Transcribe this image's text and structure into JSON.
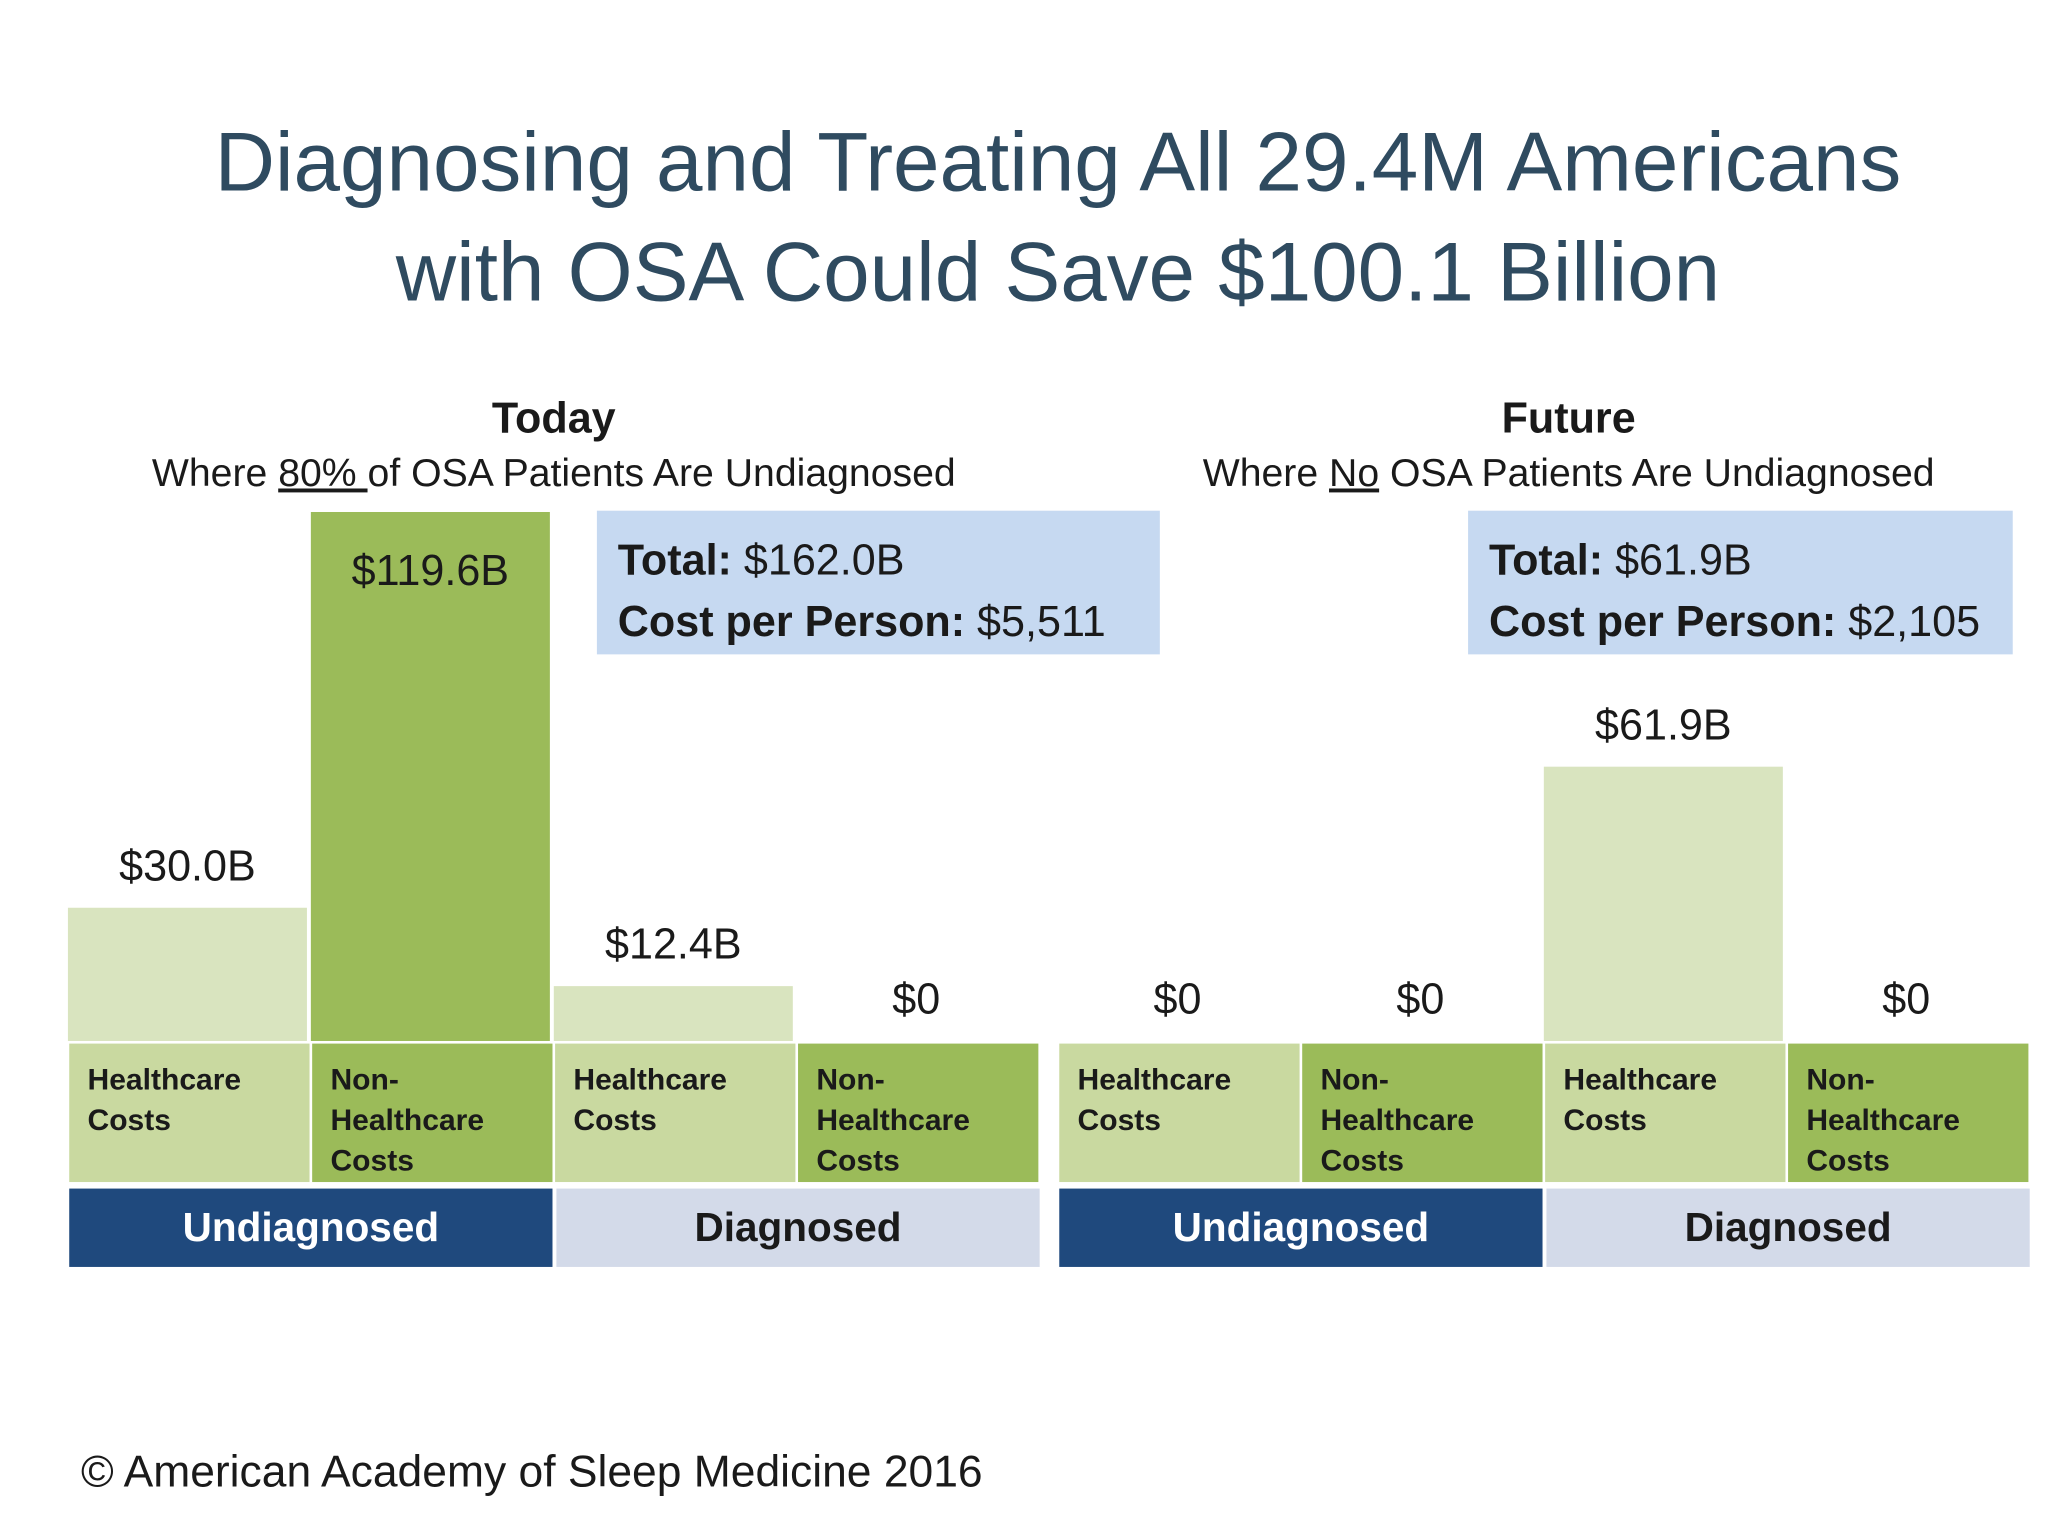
{
  "title": [
    "Diagnosing and Treating All 29.4M Americans",
    "with OSA Could Save $100.1 Billion"
  ],
  "footer": "© American Academy of Sleep Medicine 2016",
  "chart_data": [
    {
      "type": "bar",
      "title": "Today",
      "subtitle": [
        "Where ",
        "80% ",
        "of OSA Patients Are Undiagnosed"
      ],
      "annotations": [
        {
          "label": "Total:",
          "value": "$162.0B"
        },
        {
          "label": "Cost per Person:",
          "value": "$5,511"
        }
      ],
      "categories": [
        "Healthcare Costs",
        "Non-Healthcare Costs",
        "Healthcare Costs",
        "Non-Healthcare Costs"
      ],
      "values": [
        30.0,
        119.6,
        12.4,
        0
      ],
      "value_labels": [
        "$30.0B",
        "$119.6B",
        "$12.4B",
        "$0"
      ],
      "bar_colors": [
        "#d9e4bf",
        "#9bbb59",
        "#d9e4bf",
        "#9bbb59"
      ],
      "category_colors": [
        "#c9d9a0",
        "#9bbb59",
        "#c9d9a0",
        "#9bbb59"
      ],
      "groups": [
        {
          "name": "Undiagnosed",
          "color": "#1f497d",
          "text_color": "#ffffff"
        },
        {
          "name": "Diagnosed",
          "color": "#d3dae9",
          "text_color": "#1a1a1a"
        }
      ]
    },
    {
      "type": "bar",
      "title": "Future",
      "subtitle": [
        "Where ",
        "No",
        " OSA Patients Are Undiagnosed"
      ],
      "annotations": [
        {
          "label": "Total:",
          "value": "$61.9B"
        },
        {
          "label": "Cost per Person:",
          "value": "$2,105"
        }
      ],
      "categories": [
        "Healthcare Costs",
        "Non-Healthcare Costs",
        "Healthcare Costs",
        "Non-Healthcare Costs"
      ],
      "values": [
        0,
        0,
        61.9,
        0
      ],
      "value_labels": [
        "$0",
        "$0",
        "$61.9B",
        "$0"
      ],
      "bar_colors": [
        "#d9e4bf",
        "#9bbb59",
        "#d9e4bf",
        "#9bbb59"
      ],
      "category_colors": [
        "#c9d9a0",
        "#9bbb59",
        "#c9d9a0",
        "#9bbb59"
      ],
      "groups": [
        {
          "name": "Undiagnosed",
          "color": "#1f497d",
          "text_color": "#ffffff"
        },
        {
          "name": "Diagnosed",
          "color": "#d3dae9",
          "text_color": "#1a1a1a"
        }
      ]
    }
  ]
}
